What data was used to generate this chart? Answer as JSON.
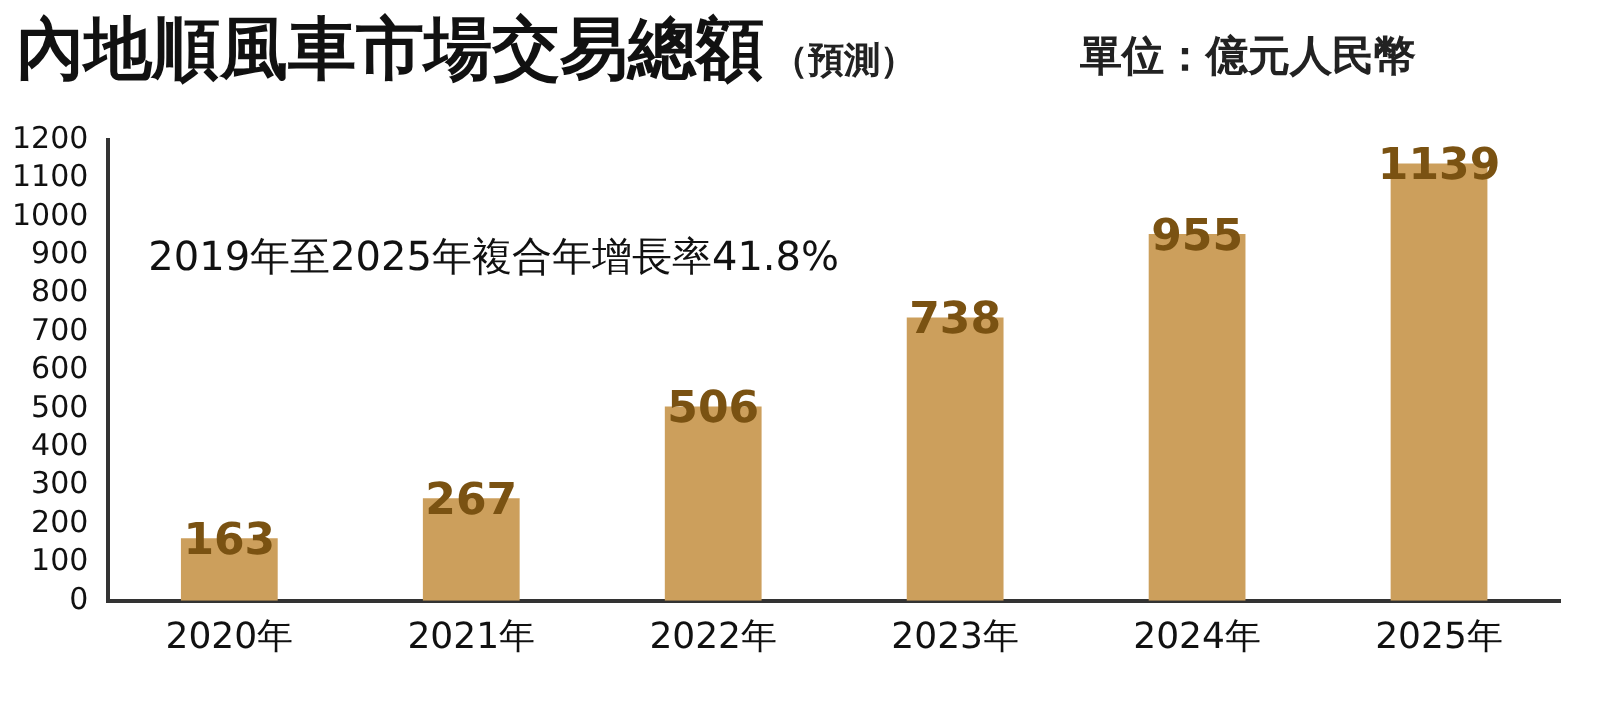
{
  "chart_data": {
    "type": "bar",
    "title": "內地順風車市場交易總額",
    "subtitle": "（預測）",
    "ylabel": "單位：億元人民幣",
    "annotations": [
      "2019年至2025年複合年增長率41.8%"
    ],
    "categories": [
      "2020年",
      "2021年",
      "2022年",
      "2023年",
      "2024年",
      "2025年"
    ],
    "values": [
      163,
      267,
      506,
      738,
      955,
      1139
    ],
    "color": "#cc9f5c",
    "ylim": [
      0,
      1200
    ],
    "yticks": [
      0,
      100,
      200,
      300,
      400,
      500,
      600,
      700,
      800,
      900,
      1000,
      1100,
      1200
    ],
    "grid": false,
    "legend": false,
    "data_labels": true
  }
}
